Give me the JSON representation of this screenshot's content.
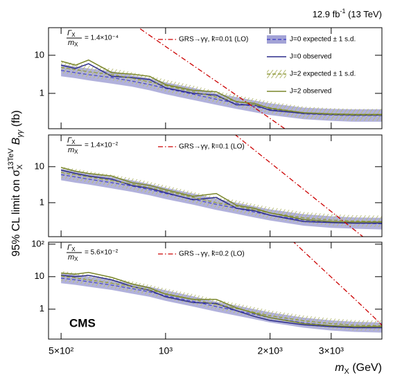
{
  "lumi": {
    "text": "12.9 fb",
    "sup": "-1",
    "energy": " (13 TeV)"
  },
  "experiment": "CMS",
  "y_label": {
    "text": "95% CL limit on σ",
    "sub": "X",
    "sup": "13TeV",
    "factor": "B",
    "factor_sub": "γγ",
    "unit": " (fb)"
  },
  "x_label": {
    "text": "m",
    "sub": "X",
    "unit": " (GeV)"
  },
  "chart_data": [
    {
      "type": "line",
      "log_x": true,
      "log_y": true,
      "ratio": {
        "numerator": "Γ",
        "denominator": "m",
        "subscript": "X",
        "value": "= 1.4×10⁻⁴"
      },
      "xlim": [
        460,
        4200
      ],
      "ylim": [
        0.118,
        53
      ],
      "yticks": [
        1,
        10
      ],
      "x": [
        500,
        550,
        600,
        700,
        800,
        900,
        1000,
        1200,
        1400,
        1600,
        1800,
        2000,
        2500,
        3000,
        3500,
        4200
      ],
      "series": [
        {
          "name": "J=0 expected ± 1 s.d.",
          "style": "band",
          "color": "#4a4ac8",
          "band_color": "#a3a3d6",
          "values": [
            4.0,
            3.5,
            3.1,
            2.6,
            2.1,
            1.7,
            1.35,
            0.95,
            0.7,
            0.55,
            0.45,
            0.38,
            0.29,
            0.27,
            0.26,
            0.26
          ],
          "lower": [
            2.8,
            2.5,
            2.2,
            1.8,
            1.5,
            1.2,
            0.95,
            0.67,
            0.5,
            0.39,
            0.32,
            0.27,
            0.21,
            0.19,
            0.18,
            0.18
          ],
          "upper": [
            5.8,
            5.1,
            4.5,
            3.8,
            3.0,
            2.5,
            1.95,
            1.4,
            1.0,
            0.8,
            0.65,
            0.55,
            0.42,
            0.39,
            0.38,
            0.38
          ]
        },
        {
          "name": "J=0 observed",
          "style": "line",
          "color": "#2c2c8c",
          "values": [
            5.5,
            4.5,
            6.0,
            2.8,
            2.6,
            2.3,
            1.4,
            1.0,
            0.9,
            0.5,
            0.5,
            0.36,
            0.3,
            0.28,
            0.27,
            0.27
          ]
        },
        {
          "name": "J=2 expected ± 1 s.d.",
          "style": "hatch",
          "color": "#8f9a3a",
          "band_color": "#b8bc7a",
          "values": [
            4.8,
            4.2,
            3.7,
            3.1,
            2.5,
            2.0,
            1.6,
            1.1,
            0.8,
            0.62,
            0.5,
            0.42,
            0.31,
            0.28,
            0.27,
            0.27
          ],
          "lower": [
            3.4,
            3.0,
            2.6,
            2.2,
            1.8,
            1.4,
            1.1,
            0.78,
            0.57,
            0.44,
            0.36,
            0.3,
            0.22,
            0.2,
            0.19,
            0.19
          ],
          "upper": [
            7.0,
            6.1,
            5.4,
            4.5,
            3.6,
            2.9,
            2.3,
            1.6,
            1.15,
            0.9,
            0.73,
            0.61,
            0.45,
            0.41,
            0.39,
            0.39
          ]
        },
        {
          "name": "J=2 observed",
          "style": "line",
          "color": "#7a862a",
          "values": [
            7.0,
            5.5,
            7.5,
            3.5,
            3.2,
            2.8,
            1.7,
            1.2,
            1.1,
            0.6,
            0.55,
            0.4,
            0.31,
            0.29,
            0.28,
            0.28
          ]
        },
        {
          "name": "GRS→γγ, k̃=0.01 (LO)",
          "style": "dashdot",
          "color": "#cc0000",
          "x": [
            800,
            1000,
            1500,
            2000,
            2300
          ],
          "values": [
            70,
            17,
            1.34,
            0.22,
            0.09
          ]
        }
      ]
    },
    {
      "type": "line",
      "log_x": true,
      "log_y": true,
      "ratio": {
        "numerator": "Γ",
        "denominator": "m",
        "subscript": "X",
        "value": "= 1.4×10⁻²"
      },
      "xlim": [
        460,
        4200
      ],
      "ylim": [
        0.114,
        76
      ],
      "yticks": [
        1,
        10
      ],
      "x": [
        500,
        550,
        600,
        700,
        800,
        900,
        1000,
        1200,
        1400,
        1600,
        1800,
        2000,
        2500,
        3000,
        3500,
        4200
      ],
      "series": [
        {
          "style": "band",
          "color": "#4a4ac8",
          "band_color": "#a3a3d6",
          "values": [
            6,
            5.2,
            4.5,
            3.6,
            2.9,
            2.3,
            1.8,
            1.25,
            0.9,
            0.7,
            0.55,
            0.45,
            0.33,
            0.29,
            0.27,
            0.26
          ],
          "lower": [
            4.2,
            3.6,
            3.2,
            2.5,
            2.0,
            1.6,
            1.26,
            0.88,
            0.63,
            0.49,
            0.39,
            0.32,
            0.23,
            0.2,
            0.19,
            0.18
          ],
          "upper": [
            8.7,
            7.5,
            6.5,
            5.2,
            4.2,
            3.3,
            2.6,
            1.8,
            1.3,
            1.0,
            0.8,
            0.65,
            0.48,
            0.42,
            0.39,
            0.38
          ]
        },
        {
          "style": "line",
          "color": "#2c2c8c",
          "values": [
            8,
            6.5,
            5.5,
            4.5,
            3.0,
            2.5,
            1.9,
            1.2,
            1.4,
            0.7,
            0.6,
            0.45,
            0.3,
            0.28,
            0.27,
            0.27
          ]
        },
        {
          "style": "hatch",
          "color": "#8f9a3a",
          "band_color": "#b8bc7a",
          "values": [
            6.9,
            6.0,
            5.2,
            4.1,
            3.3,
            2.6,
            2.1,
            1.4,
            1.0,
            0.8,
            0.63,
            0.52,
            0.38,
            0.33,
            0.31,
            0.3
          ],
          "lower": [
            4.8,
            4.2,
            3.6,
            2.9,
            2.3,
            1.8,
            1.5,
            1.0,
            0.72,
            0.56,
            0.44,
            0.36,
            0.27,
            0.23,
            0.22,
            0.21
          ],
          "upper": [
            10,
            8.7,
            7.5,
            6.0,
            4.8,
            3.8,
            3.0,
            2.0,
            1.45,
            1.16,
            0.91,
            0.75,
            0.55,
            0.48,
            0.45,
            0.44
          ]
        },
        {
          "style": "line",
          "color": "#7a862a",
          "values": [
            9.5,
            7.5,
            6.5,
            5.5,
            3.6,
            3.0,
            2.3,
            1.5,
            1.8,
            0.85,
            0.7,
            0.52,
            0.34,
            0.3,
            0.29,
            0.29
          ]
        },
        {
          "name": "GRS→γγ, k̃=0.1 (LO)",
          "style": "dashdot",
          "color": "#cc0000",
          "x": [
            1500,
            2000,
            3000,
            4000
          ],
          "values": [
            119,
            13,
            0.57,
            0.063
          ]
        }
      ]
    },
    {
      "type": "line",
      "log_x": true,
      "log_y": true,
      "ratio": {
        "numerator": "Γ",
        "denominator": "m",
        "subscript": "X",
        "value": "= 5.6×10⁻²"
      },
      "xlim": [
        460,
        4200
      ],
      "ylim": [
        0.12,
        115
      ],
      "yticks": [
        1,
        10,
        {
          "value": 100,
          "label": "10²"
        }
      ],
      "xticks": [
        {
          "value": 500,
          "label": "5×10²"
        },
        {
          "value": 1000,
          "label": "10³"
        },
        {
          "value": 2000,
          "label": "2×10³"
        },
        {
          "value": 3000,
          "label": "3×10³"
        }
      ],
      "x": [
        500,
        550,
        600,
        700,
        800,
        900,
        1000,
        1200,
        1400,
        1600,
        1800,
        2000,
        2500,
        3000,
        3500,
        4200
      ],
      "series": [
        {
          "style": "band",
          "color": "#4a4ac8",
          "band_color": "#a3a3d6",
          "values": [
            9,
            8,
            7,
            5.5,
            4.3,
            3.4,
            2.6,
            1.75,
            1.2,
            0.9,
            0.7,
            0.55,
            0.38,
            0.31,
            0.28,
            0.27
          ],
          "lower": [
            6.3,
            5.6,
            4.9,
            3.9,
            3.0,
            2.4,
            1.8,
            1.2,
            0.84,
            0.63,
            0.49,
            0.39,
            0.27,
            0.22,
            0.2,
            0.19
          ],
          "upper": [
            13,
            11.6,
            10,
            8,
            6.2,
            4.9,
            3.8,
            2.5,
            1.7,
            1.3,
            1.0,
            0.8,
            0.55,
            0.45,
            0.41,
            0.39
          ]
        },
        {
          "style": "line",
          "color": "#2c2c8c",
          "values": [
            11,
            10,
            11,
            8,
            5.0,
            3.8,
            2.4,
            1.6,
            1.5,
            0.9,
            0.6,
            0.45,
            0.33,
            0.29,
            0.27,
            0.27
          ]
        },
        {
          "style": "hatch",
          "color": "#8f9a3a",
          "band_color": "#b8bc7a",
          "values": [
            10.5,
            9.2,
            8,
            6.3,
            5,
            3.9,
            3.0,
            2.0,
            1.4,
            1.05,
            0.8,
            0.63,
            0.44,
            0.36,
            0.32,
            0.31
          ],
          "lower": [
            7.3,
            6.4,
            5.6,
            4.4,
            3.5,
            2.7,
            2.1,
            1.4,
            0.98,
            0.73,
            0.56,
            0.44,
            0.31,
            0.25,
            0.22,
            0.22
          ],
          "upper": [
            15,
            13.3,
            11.6,
            9.1,
            7.2,
            5.6,
            4.3,
            2.9,
            2.0,
            1.5,
            1.16,
            0.91,
            0.64,
            0.52,
            0.46,
            0.45
          ]
        },
        {
          "style": "line",
          "color": "#7a862a",
          "values": [
            13,
            12,
            13.5,
            9.5,
            6,
            4.5,
            2.9,
            2.0,
            2.0,
            1.1,
            0.75,
            0.55,
            0.36,
            0.31,
            0.29,
            0.29
          ]
        },
        {
          "name": "GRS→γγ, k̃=0.2 (LO)",
          "style": "dashdot",
          "color": "#cc0000",
          "x": [
            2000,
            2400,
            3000,
            3500,
            4000,
            4200
          ],
          "values": [
            560,
            90,
            9.7,
            2.1,
            0.54,
            0.32
          ]
        }
      ]
    }
  ]
}
